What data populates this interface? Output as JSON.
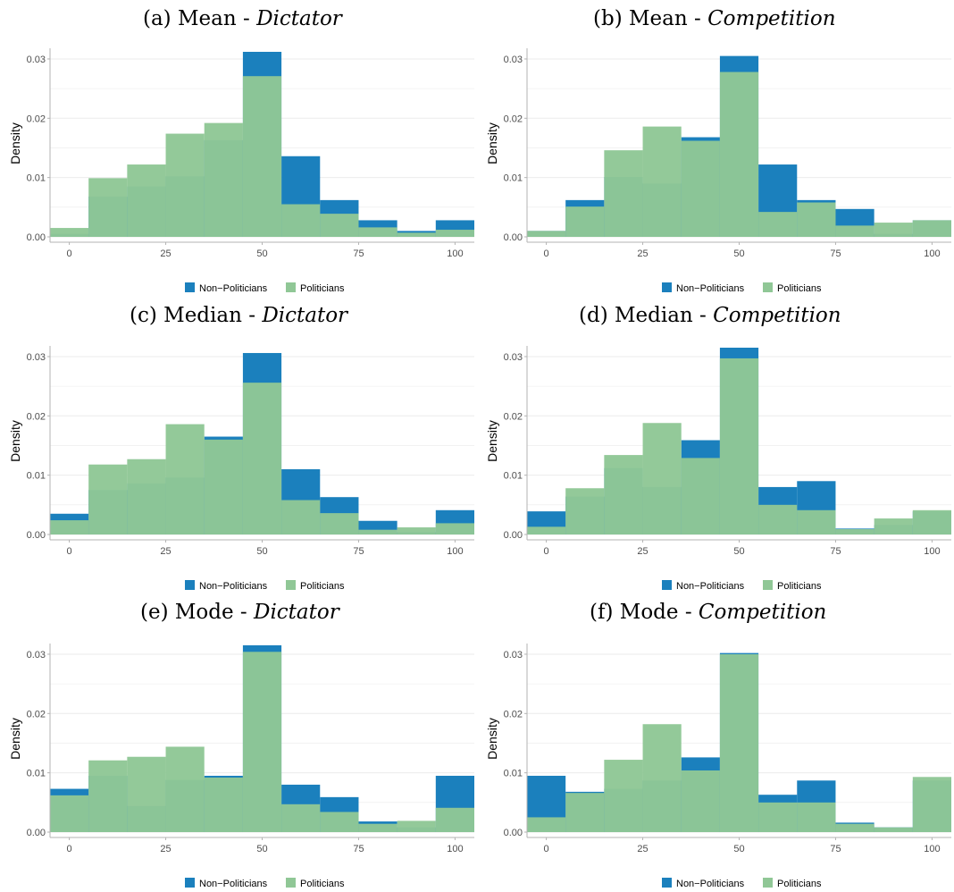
{
  "colors": {
    "non_politicians": "#1b80bd",
    "politicians": "#7dbf8f",
    "politicians_light": "#90c796",
    "grid": "#ebebeb",
    "axis": "#b3b3b3"
  },
  "chart_data": [
    {
      "type": "bar",
      "title_prefix": "(a) Mean - ",
      "title_emph": "Dictator",
      "ylabel": "Density",
      "xlabel": "",
      "xlim": [
        -5,
        105
      ],
      "ylim": [
        0,
        0.0315
      ],
      "x_ticks": [
        "0",
        "25",
        "50",
        "75",
        "100"
      ],
      "y_ticks": [
        "0.00",
        "0.01",
        "0.02",
        "0.03"
      ],
      "bin_centers": [
        0,
        10,
        20,
        30,
        40,
        50,
        60,
        70,
        80,
        90,
        100
      ],
      "legend": [
        "Non−Politicians",
        "Politicians"
      ],
      "series": [
        {
          "name": "Non−Politicians",
          "values": [
            0.0005,
            0.0068,
            0.0085,
            0.0102,
            0.0163,
            0.0312,
            0.0136,
            0.0062,
            0.0028,
            0.001,
            0.0028
          ]
        },
        {
          "name": "Politicians",
          "values": [
            0.0015,
            0.0099,
            0.0122,
            0.0174,
            0.0192,
            0.0271,
            0.0055,
            0.0039,
            0.0016,
            0.0007,
            0.0012
          ]
        }
      ]
    },
    {
      "type": "bar",
      "title_prefix": "(b) Mean - ",
      "title_emph": "Competition",
      "ylabel": "Density",
      "xlabel": "",
      "xlim": [
        -5,
        105
      ],
      "ylim": [
        0,
        0.0315
      ],
      "x_ticks": [
        "0",
        "25",
        "50",
        "75",
        "100"
      ],
      "y_ticks": [
        "0.00",
        "0.01",
        "0.02",
        "0.03"
      ],
      "bin_centers": [
        0,
        10,
        20,
        30,
        40,
        50,
        60,
        70,
        80,
        90,
        100
      ],
      "legend": [
        "Non−Politicians",
        "Politicians"
      ],
      "series": [
        {
          "name": "Non−Politicians",
          "values": [
            0.001,
            0.0062,
            0.0101,
            0.009,
            0.0168,
            0.0305,
            0.0122,
            0.0062,
            0.0047,
            0.0005,
            0.0028
          ]
        },
        {
          "name": "Politicians",
          "values": [
            0.001,
            0.0051,
            0.0146,
            0.0186,
            0.0162,
            0.0278,
            0.0042,
            0.0058,
            0.0019,
            0.0024,
            0.0028
          ]
        }
      ]
    },
    {
      "type": "bar",
      "title_prefix": "(c) Median - ",
      "title_emph": "Dictator",
      "ylabel": "Density",
      "xlabel": "",
      "xlim": [
        -5,
        105
      ],
      "ylim": [
        0,
        0.0315
      ],
      "x_ticks": [
        "0",
        "25",
        "50",
        "75",
        "100"
      ],
      "y_ticks": [
        "0.00",
        "0.01",
        "0.02",
        "0.03"
      ],
      "bin_centers": [
        0,
        10,
        20,
        30,
        40,
        50,
        60,
        70,
        80,
        90,
        100
      ],
      "legend": [
        "Non−Politicians",
        "Politicians"
      ],
      "series": [
        {
          "name": "Non−Politicians",
          "values": [
            0.0035,
            0.0075,
            0.0086,
            0.0096,
            0.0165,
            0.0306,
            0.011,
            0.0063,
            0.0023,
            0.0004,
            0.0041
          ]
        },
        {
          "name": "Politicians",
          "values": [
            0.0024,
            0.0118,
            0.0127,
            0.0186,
            0.016,
            0.0256,
            0.0058,
            0.0036,
            0.0008,
            0.0012,
            0.0019
          ]
        }
      ]
    },
    {
      "type": "bar",
      "title_prefix": "(d) Median - ",
      "title_emph": "Competition",
      "ylabel": "Density",
      "xlabel": "",
      "xlim": [
        -5,
        105
      ],
      "ylim": [
        0,
        0.0315
      ],
      "x_ticks": [
        "0",
        "25",
        "50",
        "75",
        "100"
      ],
      "y_ticks": [
        "0.00",
        "0.01",
        "0.02",
        "0.03"
      ],
      "bin_centers": [
        0,
        10,
        20,
        30,
        40,
        50,
        60,
        70,
        80,
        90,
        100
      ],
      "legend": [
        "Non−Politicians",
        "Politicians"
      ],
      "series": [
        {
          "name": "Non−Politicians",
          "values": [
            0.0039,
            0.0064,
            0.0112,
            0.008,
            0.0159,
            0.0315,
            0.008,
            0.009,
            0.001,
            0.0016,
            0.0039
          ]
        },
        {
          "name": "Politicians",
          "values": [
            0.0013,
            0.0078,
            0.0134,
            0.0188,
            0.0129,
            0.0297,
            0.005,
            0.0041,
            0.0009,
            0.0027,
            0.0041
          ]
        }
      ]
    },
    {
      "type": "bar",
      "title_prefix": "(e) Mode - ",
      "title_emph": "Dictator",
      "ylabel": "Density",
      "xlabel": "",
      "xlim": [
        -5,
        105
      ],
      "ylim": [
        0,
        0.0315
      ],
      "x_ticks": [
        "0",
        "25",
        "50",
        "75",
        "100"
      ],
      "y_ticks": [
        "0.00",
        "0.01",
        "0.02",
        "0.03"
      ],
      "bin_centers": [
        0,
        10,
        20,
        30,
        40,
        50,
        60,
        70,
        80,
        90,
        100
      ],
      "legend": [
        "Non−Politicians",
        "Politicians"
      ],
      "series": [
        {
          "name": "Non−Politicians",
          "values": [
            0.0073,
            0.0095,
            0.0044,
            0.0088,
            0.0095,
            0.0315,
            0.008,
            0.0059,
            0.0018,
            0.0008,
            0.0095
          ]
        },
        {
          "name": "Politicians",
          "values": [
            0.0062,
            0.0121,
            0.0127,
            0.0144,
            0.0092,
            0.0304,
            0.0047,
            0.0034,
            0.0014,
            0.0019,
            0.0041
          ]
        }
      ]
    },
    {
      "type": "bar",
      "title_prefix": "(f) Mode - ",
      "title_emph": "Competition",
      "ylabel": "Density",
      "xlabel": "",
      "xlim": [
        -5,
        105
      ],
      "ylim": [
        0,
        0.0315
      ],
      "x_ticks": [
        "0",
        "25",
        "50",
        "75",
        "100"
      ],
      "y_ticks": [
        "0.00",
        "0.01",
        "0.02",
        "0.03"
      ],
      "bin_centers": [
        0,
        10,
        20,
        30,
        40,
        50,
        60,
        70,
        80,
        90,
        100
      ],
      "legend": [
        "Non−Politicians",
        "Politicians"
      ],
      "series": [
        {
          "name": "Non−Politicians",
          "values": [
            0.0095,
            0.0068,
            0.0073,
            0.0087,
            0.0126,
            0.0302,
            0.0063,
            0.0087,
            0.0016,
            0.0008,
            0.0087
          ]
        },
        {
          "name": "Politicians",
          "values": [
            0.0025,
            0.0066,
            0.0122,
            0.0182,
            0.0104,
            0.03,
            0.005,
            0.005,
            0.0014,
            0.0008,
            0.0093
          ]
        }
      ]
    }
  ]
}
